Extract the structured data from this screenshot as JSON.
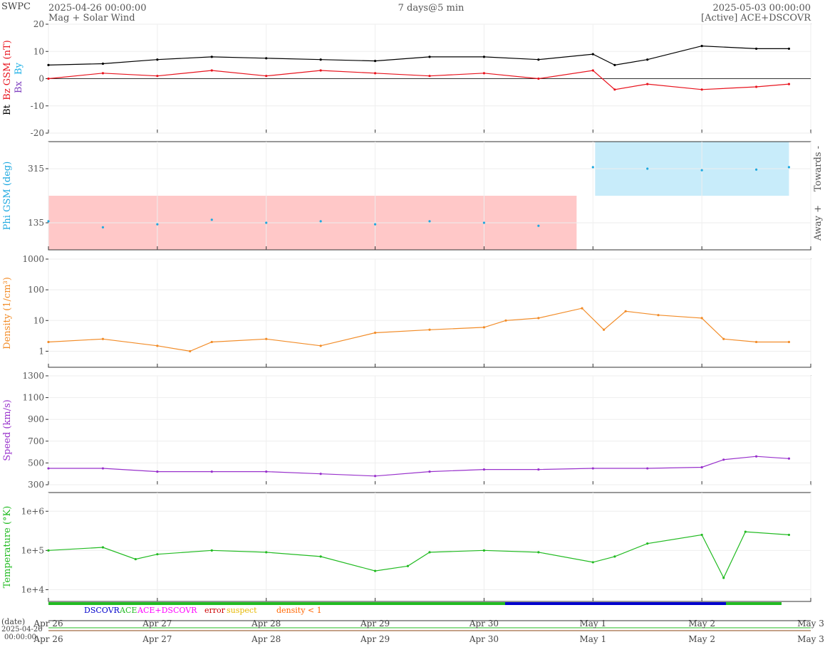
{
  "header": {
    "org": "SWPC",
    "start": "2025-04-26 00:00:00",
    "end": "2025-05-03 00:00:00",
    "span": "7 days@5 min",
    "subtitle": "Mag + Solar Wind",
    "source": "[Active] ACE+DSCOVR"
  },
  "colors": {
    "bt": "#000000",
    "bz": "#e8141e",
    "bx": "#7f3fbf",
    "by": "#1fb1e6",
    "phi": "#1fa9e0",
    "away_fill": "#ffc8c8",
    "towards_fill": "#c8ecfa",
    "density": "#f28c28",
    "speed": "#9932cc",
    "temperature": "#22bb22",
    "dscovr": "#0000cc",
    "ace": "#22bb22",
    "ace_dscovr": "#ff00ff",
    "error": "#cc0000",
    "suspect": "#e6b800",
    "density_lt1": "#ff6600"
  },
  "chart_data": [
    {
      "id": "mag",
      "type": "line",
      "ylabel_parts": [
        "Bt",
        "Bz GSM (nT)",
        "Bx",
        "By"
      ],
      "yticks": [
        "20",
        "10",
        "0",
        "-10",
        "-20"
      ],
      "ylim": [
        -20,
        20
      ],
      "x_days": [
        0,
        0.5,
        1,
        1.5,
        2,
        2.5,
        3,
        3.5,
        4,
        4.5,
        5,
        5.2,
        5.5,
        6,
        6.5,
        6.8
      ],
      "series": [
        {
          "key": "bt",
          "values": [
            5,
            5.5,
            7,
            8,
            7.5,
            7,
            6.5,
            8,
            8,
            7,
            9,
            5,
            7,
            12,
            11,
            11
          ]
        },
        {
          "key": "bz",
          "values": [
            0,
            2,
            1,
            3,
            1,
            3,
            2,
            1,
            2,
            0,
            3,
            -4,
            -2,
            -4,
            -3,
            -2
          ]
        }
      ]
    },
    {
      "id": "phi",
      "type": "scatter",
      "ylabel": "Phi GSM (deg)",
      "yticks": [
        "315",
        "135"
      ],
      "right_labels": [
        "Towards -",
        "Away +"
      ],
      "sector_changes": [
        {
          "from": 0,
          "to": 4.85,
          "sector": "away"
        },
        {
          "from": 5.02,
          "to": 6.8,
          "sector": "towards"
        }
      ],
      "x_days": [
        0,
        0.5,
        1,
        1.5,
        2,
        2.5,
        3,
        3.5,
        4,
        4.5,
        5,
        5.5,
        6,
        6.5,
        6.8
      ],
      "values": [
        140,
        120,
        130,
        145,
        135,
        140,
        130,
        140,
        135,
        125,
        320,
        315,
        310,
        312,
        320
      ]
    },
    {
      "id": "density",
      "type": "line",
      "ylabel": "Density (1/cm³)",
      "scale": "log",
      "yticks": [
        "1000",
        "100",
        "10",
        "1"
      ],
      "ylim": [
        0.3,
        1000
      ],
      "x_days": [
        0,
        0.5,
        1,
        1.3,
        1.5,
        2,
        2.5,
        3,
        3.5,
        4,
        4.2,
        4.5,
        4.9,
        5.1,
        5.3,
        5.6,
        6,
        6.2,
        6.5,
        6.8
      ],
      "values": [
        2,
        2.5,
        1.5,
        1,
        2,
        2.5,
        1.5,
        4,
        5,
        6,
        10,
        12,
        25,
        5,
        20,
        15,
        12,
        2.5,
        2,
        2
      ]
    },
    {
      "id": "speed",
      "type": "line",
      "ylabel": "Speed (km/s)",
      "yticks": [
        "1300",
        "1100",
        "900",
        "700",
        "500",
        "300"
      ],
      "ylim": [
        300,
        1300
      ],
      "x_days": [
        0,
        0.5,
        1,
        1.5,
        2,
        2.5,
        3,
        3.5,
        4,
        4.5,
        5,
        5.5,
        6,
        6.2,
        6.5,
        6.8
      ],
      "values": [
        450,
        450,
        420,
        420,
        420,
        400,
        380,
        420,
        440,
        440,
        450,
        450,
        460,
        530,
        560,
        540
      ]
    },
    {
      "id": "temperature",
      "type": "line",
      "ylabel": "Temperature (°K)",
      "scale": "log",
      "yticks": [
        "1e+6",
        "1e+5",
        "1e+4"
      ],
      "ylim": [
        5000,
        3000000
      ],
      "x_days": [
        0,
        0.5,
        0.8,
        1,
        1.5,
        2,
        2.5,
        3,
        3.3,
        3.5,
        4,
        4.5,
        5,
        5.2,
        5.5,
        6,
        6.2,
        6.4,
        6.8
      ],
      "values": [
        100000,
        120000,
        60000,
        80000,
        100000,
        90000,
        70000,
        30000,
        40000,
        90000,
        100000,
        90000,
        50000,
        70000,
        150000,
        250000,
        20000,
        300000,
        250000
      ]
    }
  ],
  "status_legend": [
    {
      "key": "dscovr",
      "label": "DSCOVR"
    },
    {
      "key": "ace",
      "label": "ACE"
    },
    {
      "key": "ace_dscovr",
      "label": "ACE+DSCOVR"
    },
    {
      "key": "error",
      "label": "error"
    },
    {
      "key": "suspect",
      "label": "suspect"
    },
    {
      "key": "density_lt1",
      "label": "density < 1"
    }
  ],
  "x_axis": {
    "date_label": "(date)",
    "start_date": "2025-04-26",
    "start_time": "00:00:00",
    "ticks": [
      "Apr 26",
      "Apr 27",
      "Apr 28",
      "Apr 29",
      "Apr 30",
      "May 1",
      "May 2",
      "May 3"
    ]
  }
}
